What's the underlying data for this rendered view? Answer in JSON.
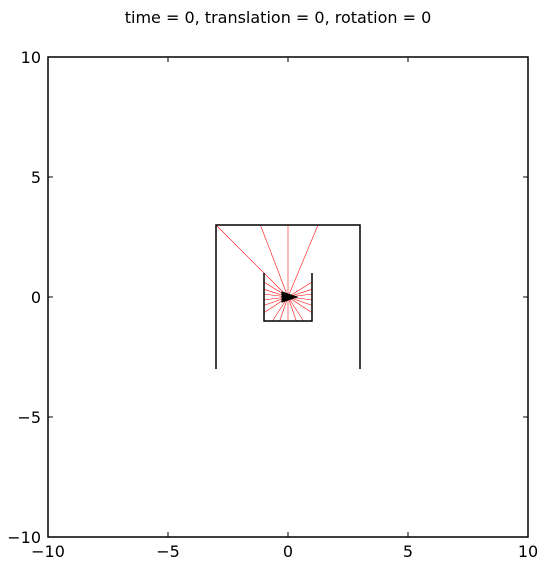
{
  "chart_data": {
    "type": "line",
    "title": "time = 0, translation = 0, rotation = 0",
    "xlabel": "",
    "ylabel": "",
    "xlim": [
      -10,
      10
    ],
    "ylim": [
      -10,
      10
    ],
    "x_ticks": [
      -10,
      -5,
      0,
      5,
      10
    ],
    "y_ticks": [
      -10,
      -5,
      0,
      5,
      10
    ],
    "x_tick_labels": [
      "−10",
      "−5",
      "0",
      "5",
      "10"
    ],
    "y_tick_labels": [
      "−10",
      "−5",
      "0",
      "5",
      "10"
    ],
    "grid": false,
    "walls": [
      [
        [
          -3,
          -3
        ],
        [
          -3,
          3
        ],
        [
          3,
          3
        ],
        [
          3,
          -3
        ]
      ],
      [
        [
          -1,
          1
        ],
        [
          -1,
          -1
        ],
        [
          1,
          -1
        ],
        [
          1,
          1
        ]
      ]
    ],
    "robot": {
      "position": [
        0,
        0
      ],
      "heading_deg": 0,
      "color": "#000000"
    },
    "sensor_rays": [
      [
        -3.0,
        3.0
      ],
      [
        -1.15,
        3.0
      ],
      [
        0.0,
        3.0
      ],
      [
        1.25,
        3.0
      ],
      [
        -1.0,
        0.62
      ],
      [
        -1.0,
        0.32
      ],
      [
        -1.0,
        0.12
      ],
      [
        -1.0,
        -0.12
      ],
      [
        -1.0,
        -0.35
      ],
      [
        -1.0,
        -0.65
      ],
      [
        -0.65,
        -1.0
      ],
      [
        -0.35,
        -1.0
      ],
      [
        0.0,
        -1.0
      ],
      [
        0.35,
        -1.0
      ],
      [
        0.65,
        -1.0
      ],
      [
        1.0,
        -0.65
      ],
      [
        1.0,
        -0.35
      ],
      [
        1.0,
        -0.12
      ],
      [
        1.0,
        0.12
      ],
      [
        1.0,
        0.32
      ],
      [
        1.0,
        0.62
      ]
    ],
    "colors": {
      "walls": "#000000",
      "rays": "#ff0000",
      "axes": "#000000"
    }
  }
}
